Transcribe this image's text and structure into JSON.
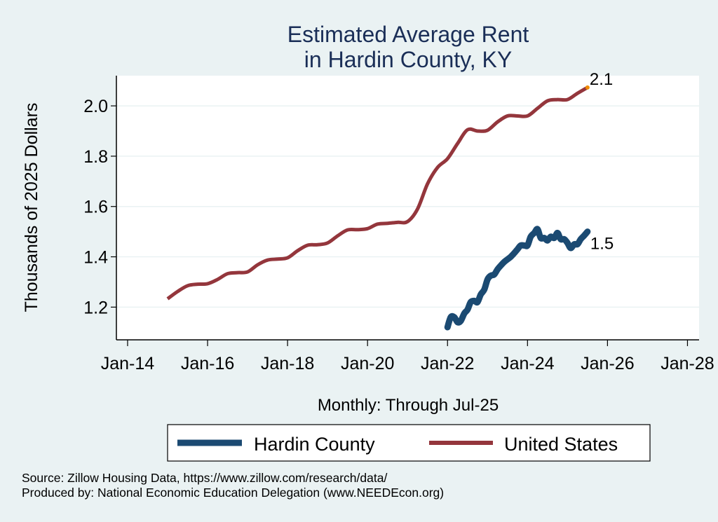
{
  "chart_data": {
    "type": "line",
    "title": [
      "Estimated Average Rent",
      "in Hardin County, KY"
    ],
    "xlabel": "Monthly: Through Jul-25",
    "ylabel": "Thousands of 2025 Dollars",
    "x_ticks": [
      "Jan-14",
      "Jan-16",
      "Jan-18",
      "Jan-20",
      "Jan-22",
      "Jan-24",
      "Jan-26",
      "Jan-28"
    ],
    "x_tick_values": [
      2014,
      2016,
      2018,
      2020,
      2022,
      2024,
      2026,
      2028
    ],
    "xlim": [
      2013.72,
      2028.29
    ],
    "y_ticks": [
      "1.2",
      "1.4",
      "1.6",
      "1.8",
      "2.0"
    ],
    "y_tick_values": [
      1.2,
      1.4,
      1.6,
      1.8,
      2.0
    ],
    "ylim": [
      1.07,
      2.12
    ],
    "grid": true,
    "legend_position": "bottom",
    "series": [
      {
        "name": "Hardin County",
        "color": "#1b4a72",
        "end_label": "1.5",
        "x": [
          2022.0,
          2022.08,
          2022.17,
          2022.25,
          2022.33,
          2022.42,
          2022.5,
          2022.58,
          2022.67,
          2022.75,
          2022.83,
          2022.92,
          2023.0,
          2023.08,
          2023.17,
          2023.25,
          2023.33,
          2023.42,
          2023.5,
          2023.58,
          2023.67,
          2023.75,
          2023.83,
          2023.92,
          2024.0,
          2024.08,
          2024.17,
          2024.25,
          2024.33,
          2024.42,
          2024.5,
          2024.58,
          2024.67,
          2024.75,
          2024.83,
          2024.92,
          2025.0,
          2025.08,
          2025.17,
          2025.25,
          2025.33,
          2025.42,
          2025.5
        ],
        "values": [
          1.12,
          1.16,
          1.16,
          1.14,
          1.145,
          1.175,
          1.19,
          1.22,
          1.225,
          1.22,
          1.25,
          1.27,
          1.31,
          1.325,
          1.33,
          1.35,
          1.365,
          1.38,
          1.39,
          1.4,
          1.415,
          1.43,
          1.445,
          1.445,
          1.445,
          1.48,
          1.495,
          1.51,
          1.475,
          1.475,
          1.465,
          1.48,
          1.475,
          1.495,
          1.47,
          1.47,
          1.455,
          1.435,
          1.45,
          1.45,
          1.47,
          1.485,
          1.5
        ]
      },
      {
        "name": "United States",
        "color": "#94363c",
        "end_label": "2.1",
        "end_marker_color": "#f08a00",
        "x": [
          2015.0,
          2015.25,
          2015.5,
          2015.75,
          2016.0,
          2016.25,
          2016.5,
          2016.75,
          2017.0,
          2017.25,
          2017.5,
          2017.75,
          2018.0,
          2018.25,
          2018.5,
          2018.75,
          2019.0,
          2019.25,
          2019.5,
          2019.75,
          2020.0,
          2020.25,
          2020.5,
          2020.75,
          2021.0,
          2021.25,
          2021.5,
          2021.75,
          2022.0,
          2022.25,
          2022.5,
          2022.75,
          2023.0,
          2023.25,
          2023.5,
          2023.75,
          2024.0,
          2024.25,
          2024.5,
          2024.75,
          2025.0,
          2025.25,
          2025.5
        ],
        "values": [
          1.233,
          1.262,
          1.285,
          1.291,
          1.293,
          1.31,
          1.333,
          1.337,
          1.34,
          1.368,
          1.387,
          1.391,
          1.396,
          1.424,
          1.446,
          1.448,
          1.455,
          1.483,
          1.507,
          1.508,
          1.512,
          1.53,
          1.533,
          1.537,
          1.54,
          1.59,
          1.69,
          1.755,
          1.79,
          1.85,
          1.905,
          1.9,
          1.903,
          1.936,
          1.96,
          1.96,
          1.96,
          1.99,
          2.02,
          2.025,
          2.025,
          2.05,
          2.073
        ]
      }
    ],
    "source_note": "Source: Zillow Housing Data, https://www.zillow.com/research/data/",
    "producer_note": "Produced by: National Economic Education Delegation (www.NEEDEcon.org)"
  }
}
